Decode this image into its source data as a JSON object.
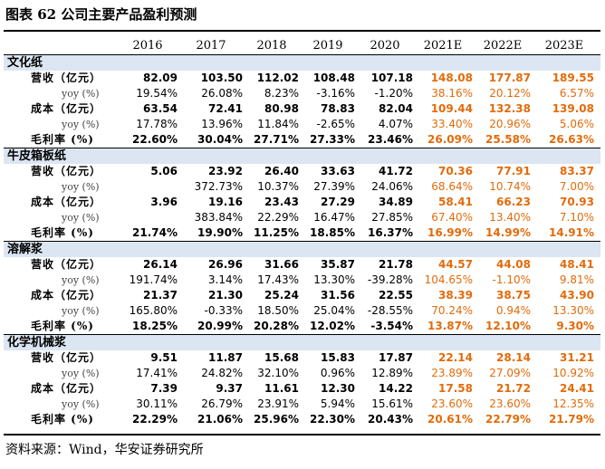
{
  "title": "图表 62  公司主要产品盈利预测",
  "source": "资料来源：Wind，华安证券研究所",
  "years": [
    "2016",
    "2017",
    "2018",
    "2019",
    "2020",
    "2021E",
    "2022E",
    "2023E"
  ],
  "sections": [
    {
      "name": "文化纸",
      "rows": [
        {
          "label": "营收（亿元）",
          "kind": "main",
          "values": [
            "82.09",
            "103.50",
            "112.02",
            "108.48",
            "107.18",
            "148.08",
            "177.87",
            "189.55"
          ]
        },
        {
          "label": "yoy (%)",
          "kind": "yoy",
          "values": [
            "19.54%",
            "26.08%",
            "8.23%",
            "-3.16%",
            "-1.20%",
            "38.16%",
            "20.12%",
            "6.57%"
          ]
        },
        {
          "label": "成本（亿元）",
          "kind": "main",
          "values": [
            "63.54",
            "72.41",
            "80.98",
            "78.83",
            "82.04",
            "109.44",
            "132.38",
            "139.08"
          ]
        },
        {
          "label": "yoy (%)",
          "kind": "yoy",
          "values": [
            "17.78%",
            "13.96%",
            "11.84%",
            "-2.65%",
            "4.07%",
            "33.40%",
            "20.96%",
            "5.06%"
          ]
        },
        {
          "label": "毛利率 (%)",
          "kind": "main",
          "values": [
            "22.60%",
            "30.04%",
            "27.71%",
            "27.33%",
            "23.46%",
            "26.09%",
            "25.58%",
            "26.63%"
          ]
        }
      ]
    },
    {
      "name": "牛皮箱板纸",
      "rows": [
        {
          "label": "营收（亿元）",
          "kind": "main",
          "values": [
            "5.06",
            "23.92",
            "26.40",
            "33.63",
            "41.72",
            "70.36",
            "77.91",
            "83.37"
          ]
        },
        {
          "label": "yoy (%)",
          "kind": "yoy",
          "values": [
            "",
            "372.73%",
            "10.37%",
            "27.39%",
            "24.06%",
            "68.64%",
            "10.74%",
            "7.00%"
          ]
        },
        {
          "label": "成本（亿元）",
          "kind": "main",
          "values": [
            "3.96",
            "19.16",
            "23.43",
            "27.29",
            "34.89",
            "58.41",
            "66.23",
            "70.93"
          ]
        },
        {
          "label": "yoy (%)",
          "kind": "yoy",
          "values": [
            "",
            "383.84%",
            "22.29%",
            "16.47%",
            "27.85%",
            "67.40%",
            "13.40%",
            "7.10%"
          ]
        },
        {
          "label": "毛利率 (%)",
          "kind": "main",
          "values": [
            "21.74%",
            "19.90%",
            "11.25%",
            "18.85%",
            "16.37%",
            "16.99%",
            "14.99%",
            "14.91%"
          ]
        }
      ]
    },
    {
      "name": "溶解浆",
      "rows": [
        {
          "label": "营收（亿元）",
          "kind": "main",
          "values": [
            "26.14",
            "26.96",
            "31.66",
            "35.87",
            "21.78",
            "44.57",
            "44.08",
            "48.41"
          ]
        },
        {
          "label": "yoy (%)",
          "kind": "yoy",
          "values": [
            "191.74%",
            "3.14%",
            "17.43%",
            "13.30%",
            "-39.28%",
            "104.65%",
            "-1.10%",
            "9.81%"
          ]
        },
        {
          "label": "成本（亿元）",
          "kind": "main",
          "values": [
            "21.37",
            "21.30",
            "25.24",
            "31.56",
            "22.55",
            "38.39",
            "38.75",
            "43.90"
          ]
        },
        {
          "label": "yoy (%)",
          "kind": "yoy",
          "values": [
            "165.80%",
            "-0.33%",
            "18.50%",
            "25.04%",
            "-28.55%",
            "70.24%",
            "0.94%",
            "13.30%"
          ]
        },
        {
          "label": "毛利率 (%)",
          "kind": "main",
          "values": [
            "18.25%",
            "20.99%",
            "20.28%",
            "12.02%",
            "-3.54%",
            "13.87%",
            "12.10%",
            "9.30%"
          ]
        }
      ]
    },
    {
      "name": "化学机械浆",
      "rows": [
        {
          "label": "营收（亿元）",
          "kind": "main",
          "values": [
            "9.51",
            "11.87",
            "15.68",
            "15.83",
            "17.87",
            "22.14",
            "28.14",
            "31.21"
          ]
        },
        {
          "label": "yoy (%)",
          "kind": "yoy",
          "values": [
            "17.41%",
            "24.82%",
            "32.10%",
            "0.96%",
            "12.89%",
            "23.89%",
            "27.09%",
            "10.92%"
          ]
        },
        {
          "label": "成本（亿元）",
          "kind": "main",
          "values": [
            "7.39",
            "9.37",
            "11.61",
            "12.30",
            "14.22",
            "17.58",
            "21.72",
            "24.41"
          ]
        },
        {
          "label": "yoy (%)",
          "kind": "yoy",
          "values": [
            "30.11%",
            "26.79%",
            "23.91%",
            "5.94%",
            "15.61%",
            "23.60%",
            "23.60%",
            "12.35%"
          ]
        },
        {
          "label": "毛利率 (%)",
          "kind": "main",
          "values": [
            "22.29%",
            "21.06%",
            "25.96%",
            "22.30%",
            "20.43%",
            "20.61%",
            "22.79%",
            "21.79%"
          ]
        }
      ]
    }
  ],
  "colors": {
    "forecast": "#e26b0a",
    "section_band": "#dce6f2"
  }
}
